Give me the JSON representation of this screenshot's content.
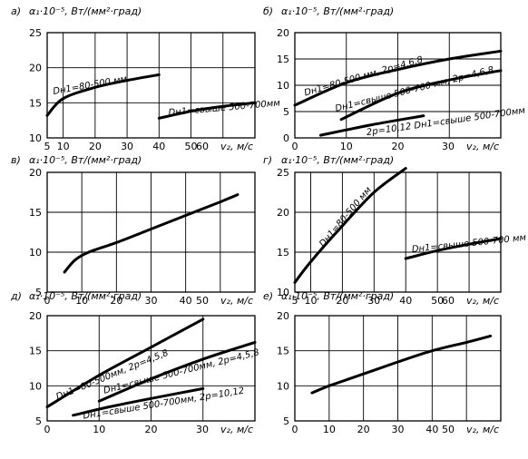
{
  "chart_data": [
    {
      "type": "line",
      "panel_label": "а)",
      "ylabel": "α₁·10⁻⁵, Вт/(мм²·град)",
      "xlabel": "v₂, м/с",
      "xlim": [
        5,
        70
      ],
      "ylim": [
        10,
        25
      ],
      "xticks": [
        5,
        10,
        20,
        30,
        40,
        50,
        60
      ],
      "yticks": [
        10,
        15,
        20,
        25
      ],
      "grid": true,
      "series": [
        {
          "name": "Dн1=80-500 мм",
          "x": [
            5,
            10,
            20,
            30,
            40
          ],
          "y": [
            13.2,
            15.6,
            17.2,
            18.2,
            19.0
          ]
        },
        {
          "name": "Dн1=свыше 500-700мм",
          "x": [
            40,
            50,
            60,
            70
          ],
          "y": [
            12.8,
            13.8,
            14.5,
            15.0
          ]
        }
      ]
    },
    {
      "type": "line",
      "panel_label": "б)",
      "ylabel": "α₁·10⁻⁵, Вт/(мм²·град)",
      "xlabel": "v₂, м/с",
      "xlim": [
        0,
        40
      ],
      "ylim": [
        0,
        20
      ],
      "xticks": [
        0,
        10,
        20,
        30
      ],
      "yticks": [
        0,
        5,
        10,
        15,
        20
      ],
      "grid": true,
      "series": [
        {
          "name": "Dн1=80-500 мм, 2p=4,6,8",
          "x": [
            0,
            10,
            20,
            30,
            40
          ],
          "y": [
            6.2,
            10.5,
            13.0,
            15.0,
            16.5
          ]
        },
        {
          "name": "Dн1=свыше 500-700 мм, 2p=4,6,8",
          "x": [
            9,
            20,
            30,
            40
          ],
          "y": [
            3.5,
            8.5,
            11.0,
            12.8
          ]
        },
        {
          "name": "2p=10,12 Dн1=свыше 500-700мм",
          "x": [
            5,
            15,
            25
          ],
          "y": [
            0.5,
            2.5,
            4.2
          ]
        }
      ]
    },
    {
      "type": "line",
      "panel_label": "в)",
      "ylabel": "α₁·10⁻⁵, Вт/(мм²·град)",
      "xlabel": "v₂, м/с",
      "xlim": [
        0,
        60
      ],
      "ylim": [
        5,
        20
      ],
      "xticks": [
        0,
        10,
        20,
        30,
        40,
        50
      ],
      "yticks": [
        5,
        10,
        15,
        20
      ],
      "grid": true,
      "series": [
        {
          "name": "",
          "x": [
            5,
            8,
            12,
            20,
            30,
            40,
            50,
            55
          ],
          "y": [
            7.5,
            9.0,
            10.0,
            11.2,
            12.9,
            14.6,
            16.3,
            17.2
          ]
        }
      ]
    },
    {
      "type": "line",
      "panel_label": "г)",
      "ylabel": "α₁·10⁻⁵, Вт/(мм²·град)",
      "xlabel": "v₂, м/с",
      "xlim": [
        5,
        70
      ],
      "ylim": [
        10,
        25
      ],
      "xticks": [
        5,
        10,
        20,
        30,
        40,
        50,
        60
      ],
      "yticks": [
        10,
        15,
        20,
        25
      ],
      "grid": true,
      "series": [
        {
          "name": "Dн1=80-500 мм",
          "x": [
            5,
            10,
            20,
            30,
            40
          ],
          "y": [
            11.2,
            13.8,
            18.3,
            22.5,
            25.5
          ]
        },
        {
          "name": "Dн1=свыше 500-700 мм",
          "x": [
            40,
            50,
            60,
            70
          ],
          "y": [
            14.2,
            15.2,
            16.0,
            16.7
          ]
        }
      ]
    },
    {
      "type": "line",
      "panel_label": "д)",
      "ylabel": "α₁·10⁻⁵, Вт/(мм²·град)",
      "xlabel": "v₂, м/с",
      "xlim": [
        0,
        40
      ],
      "ylim": [
        5,
        20
      ],
      "xticks": [
        0,
        10,
        20,
        30
      ],
      "yticks": [
        5,
        10,
        15,
        20
      ],
      "grid": true,
      "series": [
        {
          "name": "Dн1=80-500мм, 2p=4,5,8",
          "x": [
            0,
            10,
            20,
            30
          ],
          "y": [
            7.0,
            11.5,
            15.5,
            19.5
          ]
        },
        {
          "name": "Dн1=свыше 500-700мм, 2p=4,5,8",
          "x": [
            10,
            20,
            30,
            40
          ],
          "y": [
            7.8,
            11.0,
            13.8,
            16.2
          ]
        },
        {
          "name": "Dн1=свыше 500-700мм, 2p=10,12",
          "x": [
            5,
            12,
            20,
            30
          ],
          "y": [
            5.8,
            7.0,
            8.2,
            9.6
          ]
        }
      ]
    },
    {
      "type": "line",
      "panel_label": "е)",
      "ylabel": "α₁·10⁻⁵, Вт/(мм²·град)",
      "xlabel": "v₂, м/с",
      "xlim": [
        0,
        60
      ],
      "ylim": [
        5,
        20
      ],
      "xticks": [
        0,
        10,
        20,
        30,
        40,
        50
      ],
      "yticks": [
        5,
        10,
        15,
        20
      ],
      "grid": true,
      "series": [
        {
          "name": "",
          "x": [
            5,
            10,
            20,
            30,
            40,
            50,
            57
          ],
          "y": [
            9.0,
            10.0,
            11.7,
            13.4,
            15.0,
            16.2,
            17.1
          ]
        }
      ]
    }
  ]
}
